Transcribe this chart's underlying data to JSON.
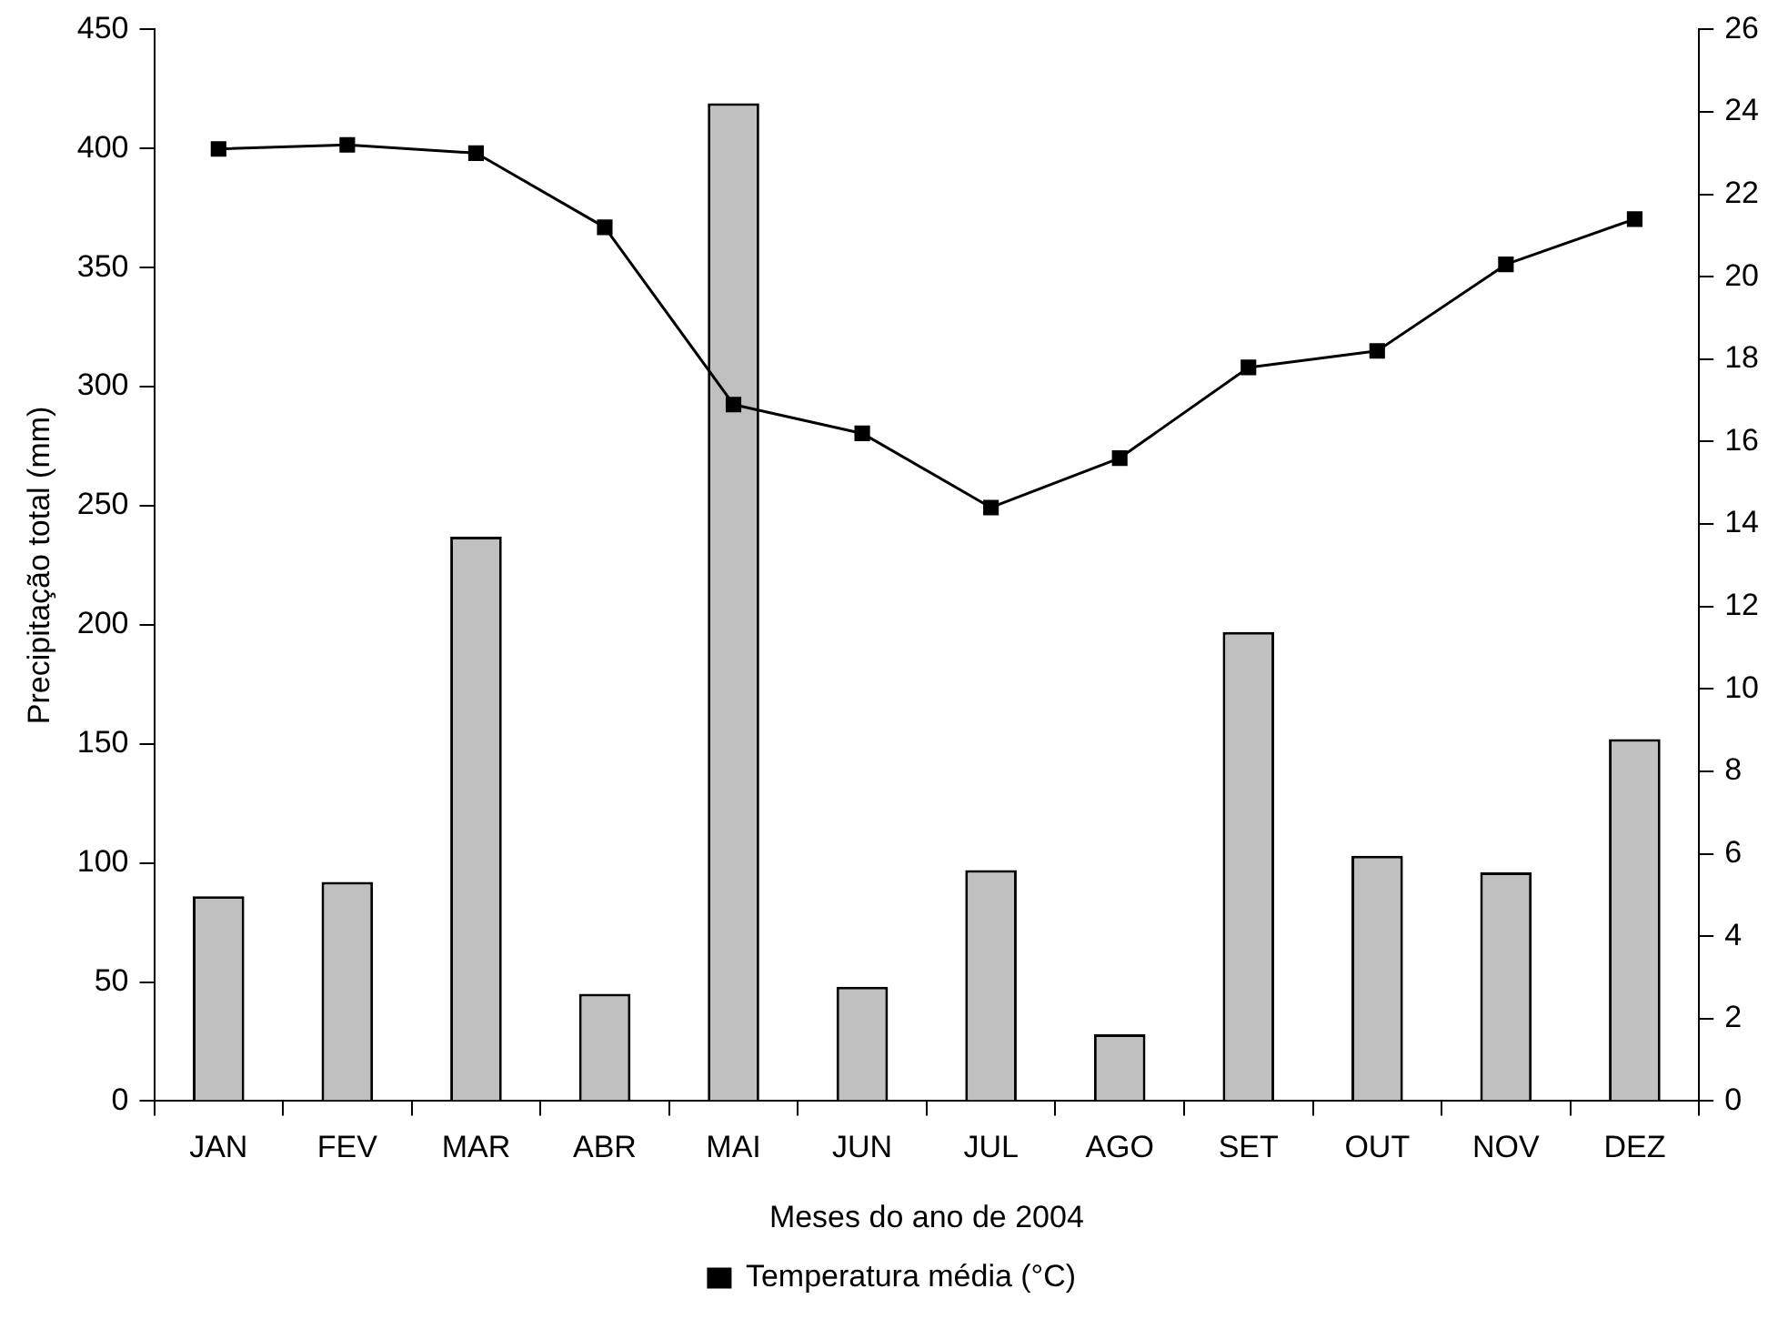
{
  "chart_data": {
    "type": "bar",
    "xlabel": "Meses do ano de 2004",
    "ylabel": "Precipitação total (mm)",
    "categories": [
      "JAN",
      "FEV",
      "MAR",
      "ABR",
      "MAI",
      "JUN",
      "JUL",
      "AGO",
      "SET",
      "OUT",
      "NOV",
      "DEZ"
    ],
    "series": [
      {
        "color": "#c0c0c0",
        "values": [
          86,
          92,
          237,
          45,
          419,
          48,
          97,
          28,
          197,
          103,
          96,
          152
        ]
      },
      {
        "type": "line",
        "name": "Temperatura média (°C)",
        "color": "#000000",
        "axis": "y2",
        "marker": "square",
        "values": [
          23.1,
          23.2,
          23.0,
          21.2,
          16.9,
          16.2,
          14.4,
          15.6,
          17.8,
          18.2,
          20.3,
          21.4
        ]
      }
    ],
    "ylim": [
      0,
      450
    ],
    "yticks": [
      0,
      50,
      100,
      150,
      200,
      250,
      300,
      350,
      400,
      450
    ],
    "y2lim": [
      0,
      26
    ],
    "y2ticks": [
      0,
      2,
      4,
      6,
      8,
      10,
      12,
      14,
      16,
      18,
      20,
      22,
      24,
      26
    ],
    "grid": false,
    "legend": "bottom"
  }
}
